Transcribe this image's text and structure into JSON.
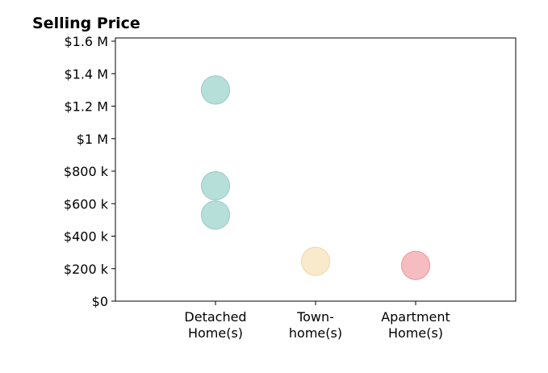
{
  "chart_data": {
    "type": "scatter",
    "title": "Selling Price",
    "xlabel": "",
    "ylabel": "",
    "categories": [
      [
        "Detached",
        "Home(s)"
      ],
      [
        "Town-",
        "home(s)"
      ],
      [
        "Apartment",
        "Home(s)"
      ]
    ],
    "ylim": [
      0,
      1620000
    ],
    "yticks": [
      0,
      200000,
      400000,
      600000,
      800000,
      1000000,
      1200000,
      1400000,
      1600000
    ],
    "ytick_labels": [
      "$0",
      "$200 k",
      "$400 k",
      "$600 k",
      "$800 k",
      "$1 M",
      "$1.2 M",
      "$1.4 M",
      "$1.6 M"
    ],
    "grid": false,
    "points": [
      {
        "category": 0,
        "y": 1300000,
        "color": "#b7dfd9"
      },
      {
        "category": 0,
        "y": 710000,
        "color": "#b7dfd9"
      },
      {
        "category": 0,
        "y": 530000,
        "color": "#b7dfd9"
      },
      {
        "category": 1,
        "y": 245000,
        "color": "#f8eacb"
      },
      {
        "category": 2,
        "y": 220000,
        "color": "#f6bdc1"
      }
    ],
    "point_stroke_colors": [
      "#9ccfc8",
      "#efdcb3",
      "#ee9ea4"
    ]
  }
}
